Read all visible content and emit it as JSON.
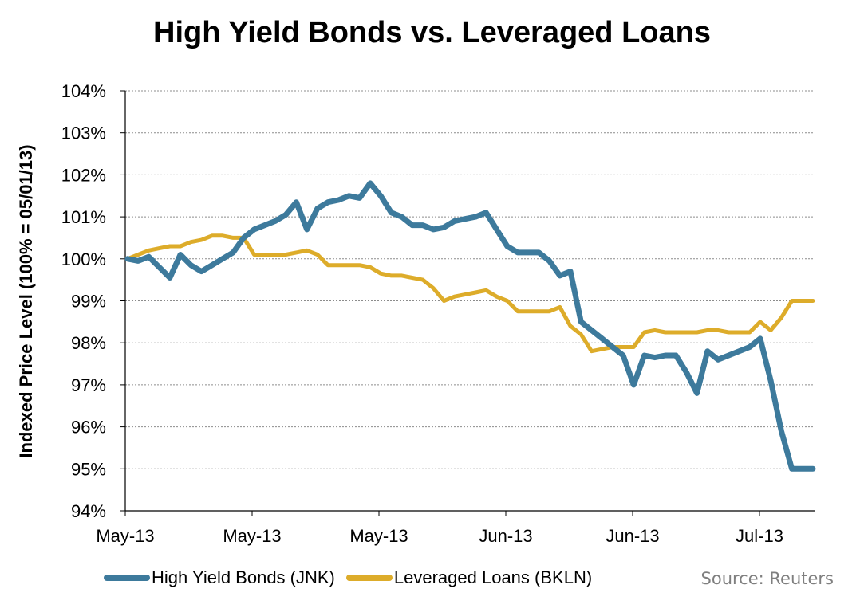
{
  "chart_data": {
    "type": "line",
    "title": "High Yield Bonds vs. Leveraged Loans",
    "ylabel": "Indexed Price Level (100% = 05/01/13)",
    "xlabel": "",
    "ylim": [
      94,
      104
    ],
    "yticks": [
      "94%",
      "95%",
      "96%",
      "97%",
      "98%",
      "99%",
      "100%",
      "101%",
      "102%",
      "103%",
      "104%"
    ],
    "xtick_labels": [
      "May-13",
      "May-13",
      "May-13",
      "Jun-13",
      "Jun-13",
      "Jul-13"
    ],
    "grid": true,
    "legend_position": "bottom",
    "source": "Source: Reuters",
    "series": [
      {
        "name": "High Yield Bonds (JNK)",
        "color": "#3d7a9c",
        "values": [
          100.0,
          99.95,
          100.05,
          99.8,
          99.55,
          100.1,
          99.85,
          99.7,
          99.85,
          100.0,
          100.15,
          100.5,
          100.7,
          100.8,
          100.9,
          101.05,
          101.35,
          100.7,
          101.2,
          101.35,
          101.4,
          101.5,
          101.45,
          101.8,
          101.5,
          101.1,
          101.0,
          100.8,
          100.8,
          100.7,
          100.75,
          100.9,
          100.95,
          101.0,
          101.1,
          100.7,
          100.3,
          100.15,
          100.15,
          100.15,
          99.95,
          99.6,
          99.7,
          98.5,
          98.3,
          98.1,
          97.9,
          97.7,
          97.0,
          97.7,
          97.65,
          97.7,
          97.7,
          97.3,
          96.8,
          97.8,
          97.6,
          97.7,
          97.8,
          97.9,
          98.1,
          97.1,
          95.9,
          95.0,
          95.0,
          95.0
        ]
      },
      {
        "name": "Leveraged Loans (BKLN)",
        "color": "#ddac2a",
        "values": [
          100.0,
          100.1,
          100.2,
          100.25,
          100.3,
          100.3,
          100.4,
          100.45,
          100.55,
          100.55,
          100.5,
          100.5,
          100.1,
          100.1,
          100.1,
          100.1,
          100.15,
          100.2,
          100.1,
          99.85,
          99.85,
          99.85,
          99.85,
          99.8,
          99.65,
          99.6,
          99.6,
          99.55,
          99.5,
          99.3,
          99.0,
          99.1,
          99.15,
          99.2,
          99.25,
          99.1,
          99.0,
          98.75,
          98.75,
          98.75,
          98.75,
          98.85,
          98.4,
          98.2,
          97.8,
          97.85,
          97.9,
          97.9,
          97.9,
          98.25,
          98.3,
          98.25,
          98.25,
          98.25,
          98.25,
          98.3,
          98.3,
          98.25,
          98.25,
          98.25,
          98.5,
          98.3,
          98.6,
          99.0,
          99.0,
          99.0
        ]
      }
    ]
  }
}
